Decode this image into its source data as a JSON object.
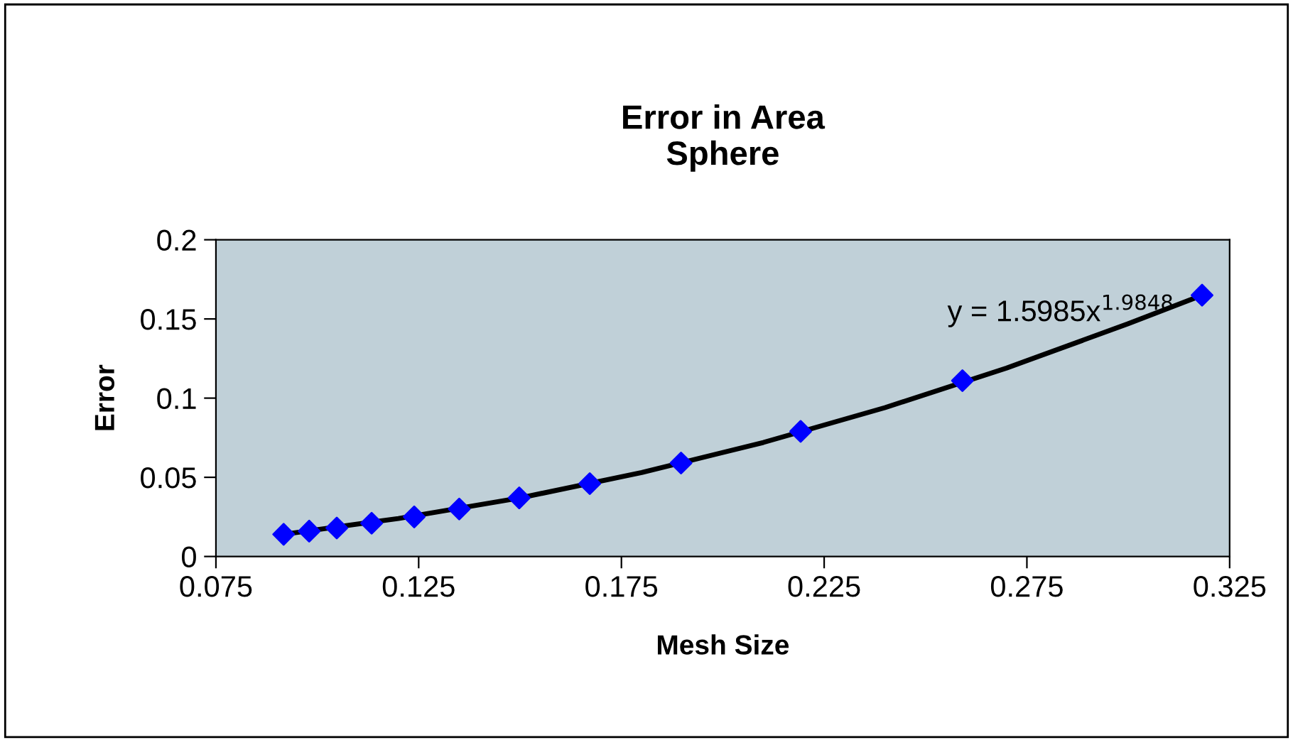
{
  "chart_data": {
    "type": "scatter",
    "title": "Error in Area\nSphere",
    "xlabel": "Mesh Size",
    "ylabel": "Error",
    "series": [
      {
        "color": "#0000ff",
        "marker": "diamond",
        "x": [
          0.0917,
          0.098,
          0.1048,
          0.1134,
          0.1239,
          0.135,
          0.1498,
          0.1672,
          0.1897,
          0.2192,
          0.2591,
          0.3182
        ],
        "values": [
          0.014,
          0.016,
          0.018,
          0.021,
          0.025,
          0.03,
          0.037,
          0.046,
          0.059,
          0.079,
          0.111,
          0.165
        ]
      },
      {
        "type": "line",
        "color": "#000000",
        "marker": "none",
        "x": [
          0.0917,
          0.12,
          0.15,
          0.18,
          0.21,
          0.24,
          0.27,
          0.3,
          0.3182
        ],
        "values": [
          0.014,
          0.024,
          0.037,
          0.053,
          0.072,
          0.094,
          0.119,
          0.147,
          0.165
        ]
      }
    ],
    "annotations": [
      {
        "text": "y = 1.5985x$^{1.9848}$",
        "x": 0.3182,
        "y": 0.165
      }
    ],
    "xlim": [
      0.075,
      0.325
    ],
    "xticks": [
      0.075,
      0.125,
      0.175,
      0.225,
      0.275,
      0.325
    ],
    "ylim": [
      0,
      0.2
    ],
    "yticks": [
      0,
      0.05,
      0.1,
      0.15,
      0.2
    ],
    "grid": false,
    "legend": false
  }
}
